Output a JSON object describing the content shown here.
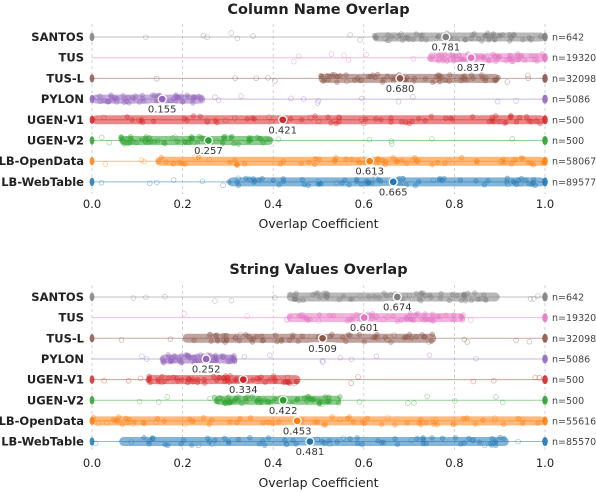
{
  "chart_data": [
    {
      "type": "scatter",
      "title": "Column Name Overlap",
      "xlabel": "Overlap Coefficient",
      "xlim": [
        0.0,
        1.0
      ],
      "xticks": [
        "0.0",
        "0.2",
        "0.4",
        "0.6",
        "0.8",
        "1.0"
      ],
      "grid": true,
      "series": [
        {
          "name": "SANTOS",
          "mean": 0.781,
          "mean_label": "0.781",
          "n_label": "n=642",
          "dense": [
            0.62,
            1.0
          ],
          "sparse": [
            0.0,
            1.0
          ],
          "color": "#7f7f7f"
        },
        {
          "name": "TUS",
          "mean": 0.837,
          "mean_label": "0.837",
          "n_label": "n=19320",
          "dense": [
            0.74,
            1.0
          ],
          "sparse": [
            0.42,
            1.0
          ],
          "color": "#e377c2"
        },
        {
          "name": "TUS-L",
          "mean": 0.68,
          "mean_label": "0.680",
          "n_label": "n=32098",
          "dense": [
            0.5,
            0.9
          ],
          "sparse": [
            0.0,
            1.0
          ],
          "color": "#8c564b"
        },
        {
          "name": "PYLON",
          "mean": 0.155,
          "mean_label": "0.155",
          "n_label": "n=5086",
          "dense": [
            0.0,
            0.25
          ],
          "sparse": [
            0.0,
            1.0
          ],
          "color": "#9467bd"
        },
        {
          "name": "UGEN-V1",
          "mean": 0.421,
          "mean_label": "0.421",
          "n_label": "n=500",
          "dense": [
            0.0,
            1.0
          ],
          "sparse": [
            0.0,
            1.0
          ],
          "color": "#d62728"
        },
        {
          "name": "UGEN-V2",
          "mean": 0.257,
          "mean_label": "0.257",
          "n_label": "n=500",
          "dense": [
            0.06,
            0.4
          ],
          "sparse": [
            0.0,
            1.0
          ],
          "color": "#2ca02c"
        },
        {
          "name": "LB-OpenData",
          "mean": 0.613,
          "mean_label": "0.613",
          "n_label": "n=58067",
          "dense": [
            0.14,
            1.0
          ],
          "sparse": [
            0.0,
            1.0
          ],
          "color": "#ff7f0e"
        },
        {
          "name": "LB-WebTable",
          "mean": 0.665,
          "mean_label": "0.665",
          "n_label": "n=89577",
          "dense": [
            0.3,
            1.0
          ],
          "sparse": [
            0.0,
            1.0
          ],
          "color": "#1f77b4"
        }
      ]
    },
    {
      "type": "scatter",
      "title": "String Values Overlap",
      "xlabel": "Overlap Coefficient",
      "xlim": [
        0.0,
        1.0
      ],
      "xticks": [
        "0.0",
        "0.2",
        "0.4",
        "0.6",
        "0.8",
        "1.0"
      ],
      "grid": true,
      "series": [
        {
          "name": "SANTOS",
          "mean": 0.674,
          "mean_label": "0.674",
          "n_label": "n=642",
          "dense": [
            0.43,
            0.9
          ],
          "sparse": [
            0.0,
            1.0
          ],
          "color": "#7f7f7f"
        },
        {
          "name": "TUS",
          "mean": 0.601,
          "mean_label": "0.601",
          "n_label": "n=19320",
          "dense": [
            0.43,
            0.82
          ],
          "sparse": [
            0.2,
            1.0
          ],
          "color": "#e377c2"
        },
        {
          "name": "TUS-L",
          "mean": 0.509,
          "mean_label": "0.509",
          "n_label": "n=32098",
          "dense": [
            0.2,
            0.76
          ],
          "sparse": [
            0.0,
            1.0
          ],
          "color": "#8c564b"
        },
        {
          "name": "PYLON",
          "mean": 0.252,
          "mean_label": "0.252",
          "n_label": "n=5086",
          "dense": [
            0.15,
            0.32
          ],
          "sparse": [
            0.04,
            1.0
          ],
          "color": "#9467bd"
        },
        {
          "name": "UGEN-V1",
          "mean": 0.334,
          "mean_label": "0.334",
          "n_label": "n=500",
          "dense": [
            0.12,
            0.46
          ],
          "sparse": [
            0.0,
            1.0
          ],
          "color": "#d62728"
        },
        {
          "name": "UGEN-V2",
          "mean": 0.422,
          "mean_label": "0.422",
          "n_label": "n=500",
          "dense": [
            0.27,
            0.55
          ],
          "sparse": [
            0.0,
            0.93
          ],
          "color": "#2ca02c"
        },
        {
          "name": "LB-OpenData",
          "mean": 0.453,
          "mean_label": "0.453",
          "n_label": "n=55616",
          "dense": [
            0.0,
            1.0
          ],
          "sparse": [
            0.0,
            1.0
          ],
          "color": "#ff7f0e"
        },
        {
          "name": "LB-WebTable",
          "mean": 0.481,
          "mean_label": "0.481",
          "n_label": "n=85570",
          "dense": [
            0.06,
            0.92
          ],
          "sparse": [
            0.0,
            1.0
          ],
          "color": "#1f77b4"
        }
      ]
    }
  ]
}
